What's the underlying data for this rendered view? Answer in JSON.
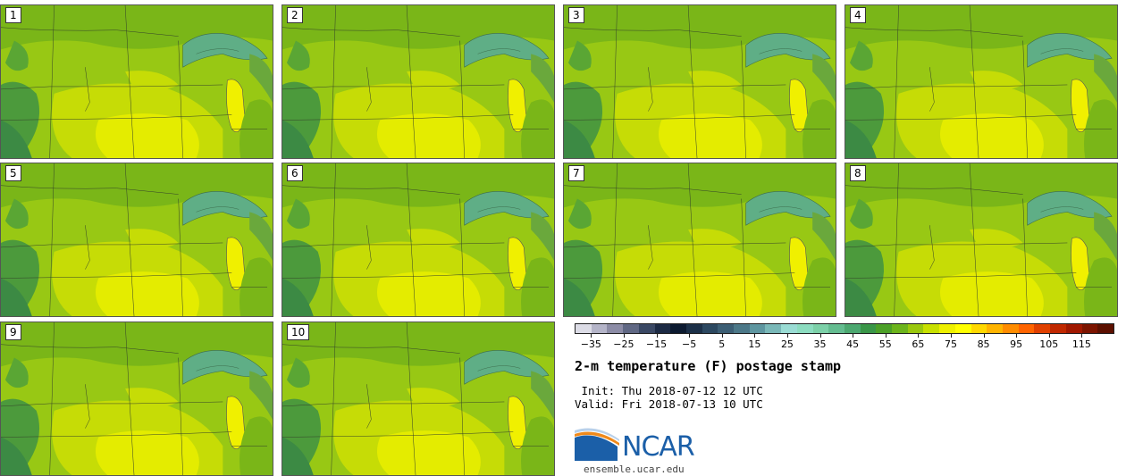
{
  "panels": [
    "1",
    "2",
    "3",
    "4",
    "5",
    "6",
    "7",
    "8",
    "9",
    "10"
  ],
  "colorbar": {
    "colors": [
      "#dcdce6",
      "#b4b4c8",
      "#8c8ca6",
      "#606884",
      "#3a4864",
      "#1c2a44",
      "#0c1a30",
      "#1c3048",
      "#2c4860",
      "#3c5e74",
      "#4c7888",
      "#5e96a0",
      "#7ab8b8",
      "#9adcd4",
      "#8cdcc0",
      "#7cd0a8",
      "#64bc90",
      "#4ca870",
      "#3a9648",
      "#4ca028",
      "#6cb41c",
      "#9ac80e",
      "#c8e000",
      "#eef000",
      "#ffff00",
      "#ffd800",
      "#ffb400",
      "#ff8c00",
      "#ff6400",
      "#e04000",
      "#c02800",
      "#a01800",
      "#7c1400",
      "#5c1000"
    ],
    "ticks": [
      "-35",
      "-25",
      "-15",
      "-5",
      "5",
      "15",
      "25",
      "35",
      "45",
      "55",
      "65",
      "75",
      "85",
      "95",
      "105",
      "115"
    ],
    "min": -40,
    "max": 125
  },
  "title": "2-m temperature (F) postage stamp",
  "init": " Init: Thu 2018-07-12 12 UTC",
  "valid": "Valid: Fri 2018-07-13 10 UTC",
  "logo": {
    "text": "NCAR",
    "icon": "ncar-swoosh-icon"
  },
  "site": "ensemble.ucar.edu"
}
